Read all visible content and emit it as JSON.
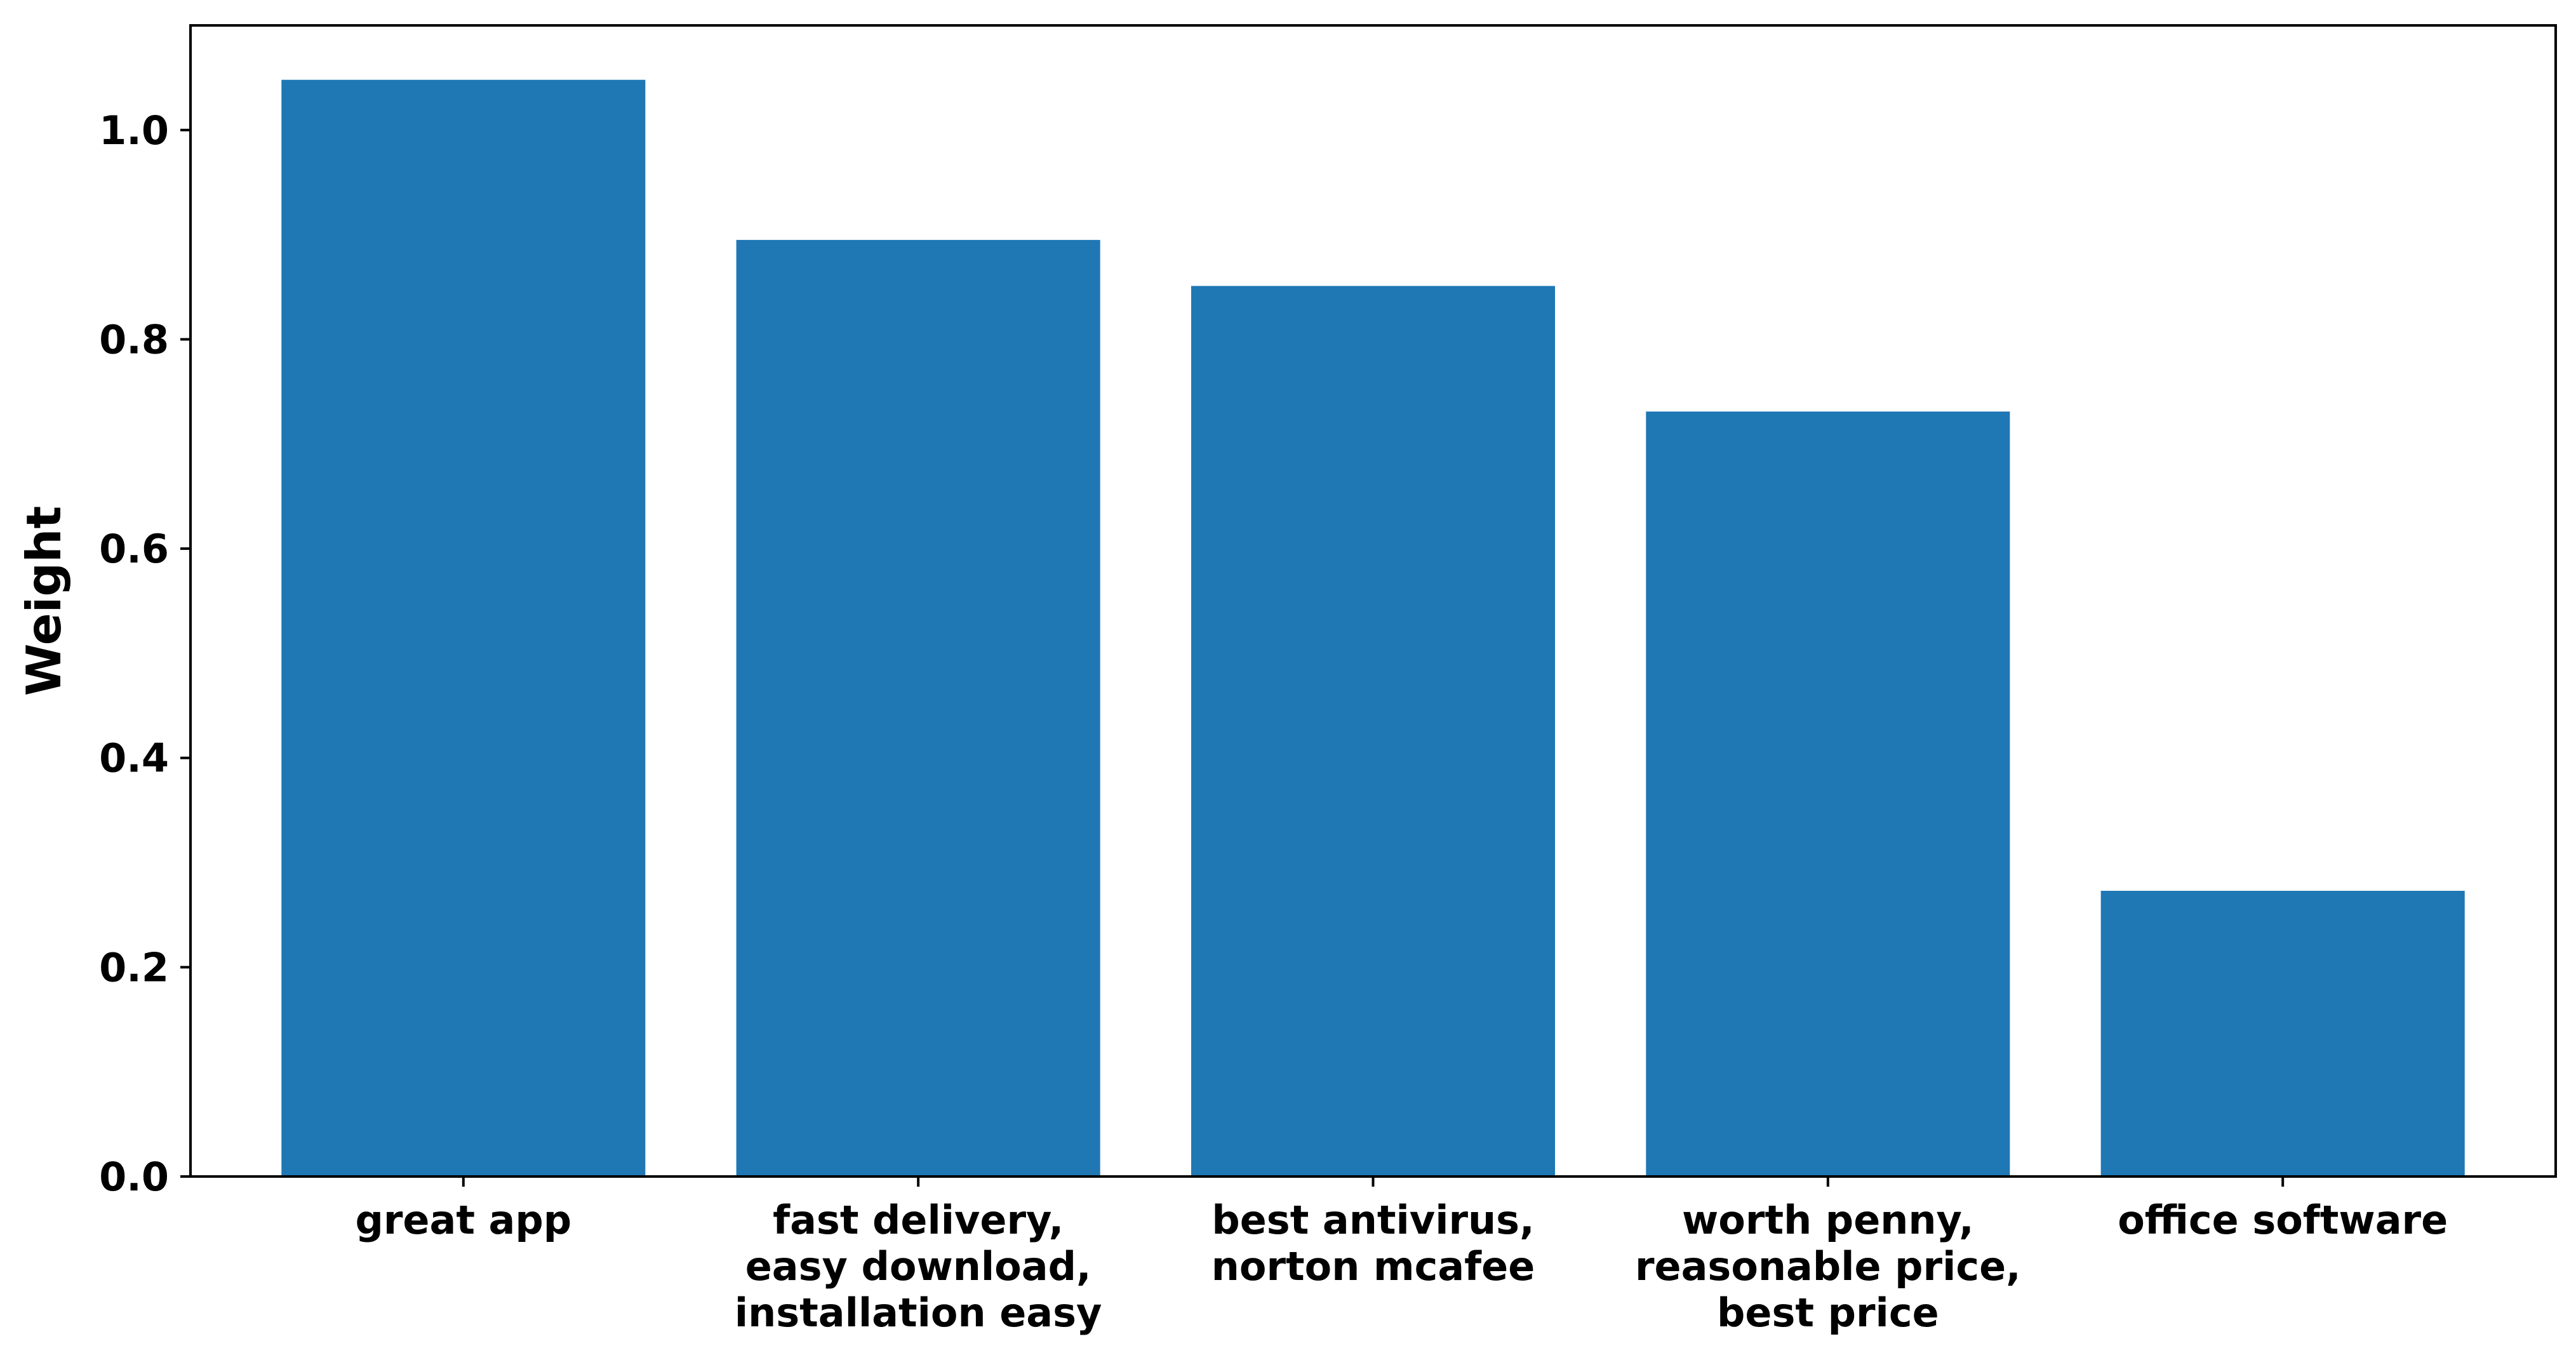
{
  "chart_data": {
    "type": "bar",
    "categories": [
      [
        "great app"
      ],
      [
        "fast delivery,",
        "easy download,",
        "installation easy"
      ],
      [
        "best antivirus,",
        "norton mcafee"
      ],
      [
        "worth penny,",
        "reasonable price,",
        "best price"
      ],
      [
        "office software"
      ]
    ],
    "values": [
      1.048,
      0.895,
      0.851,
      0.731,
      0.273
    ],
    "title": "",
    "xlabel": "",
    "ylabel": "Weight",
    "ylim": [
      0,
      1.1
    ],
    "yticks": [
      0.0,
      0.2,
      0.4,
      0.6,
      0.8,
      1.0
    ],
    "ytick_labels": [
      "0.0",
      "0.2",
      "0.4",
      "0.6",
      "0.8",
      "1.0"
    ],
    "grid": false,
    "bar_color": "#1f77b4"
  }
}
